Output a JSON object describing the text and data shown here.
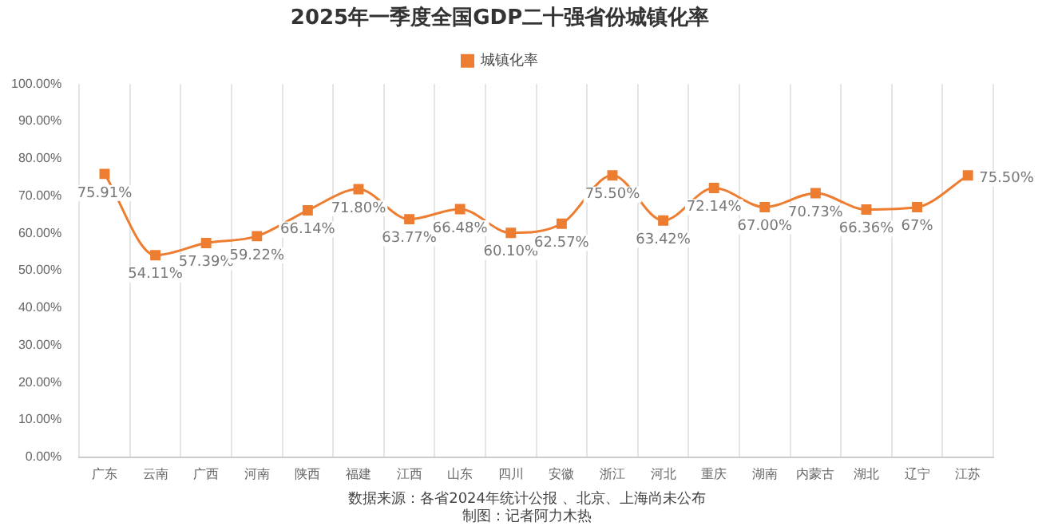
{
  "chart_data": {
    "type": "line",
    "title": "2025年一季度全国GDP二十强省份城镇化率",
    "categories": [
      "广东",
      "云南",
      "广西",
      "河南",
      "陕西",
      "福建",
      "江西",
      "山东",
      "四川",
      "安徽",
      "浙江",
      "河北",
      "重庆",
      "湖南",
      "内蒙古",
      "湖北",
      "辽宁",
      "江苏"
    ],
    "series": [
      {
        "name": "城镇化率",
        "color": "#ed7d31",
        "values": [
          75.91,
          54.11,
          57.39,
          59.22,
          66.14,
          71.8,
          63.77,
          66.48,
          60.1,
          62.57,
          75.5,
          63.42,
          72.14,
          67.0,
          70.73,
          66.36,
          67,
          75.5
        ],
        "value_labels": [
          "75.91%",
          "54.11%",
          "57.39%",
          "59.22%",
          "66.14%",
          "71.80%",
          "63.77%",
          "66.48%",
          "60.10%",
          "62.57%",
          "75.50%",
          "63.42%",
          "72.14%",
          "67.00%",
          "70.73%",
          "66.36%",
          "67%",
          "75.50%"
        ]
      }
    ],
    "ylim": [
      0,
      100
    ],
    "yticks": [
      {
        "value": 0,
        "label": "0.00%"
      },
      {
        "value": 10,
        "label": "10.00%"
      },
      {
        "value": 20,
        "label": "20.00%"
      },
      {
        "value": 30,
        "label": "30.00%"
      },
      {
        "value": 40,
        "label": "40.00%"
      },
      {
        "value": 50,
        "label": "50.00%"
      },
      {
        "value": 60,
        "label": "60.00%"
      },
      {
        "value": 70,
        "label": "70.00%"
      },
      {
        "value": 80,
        "label": "80.00%"
      },
      {
        "value": 90,
        "label": "90.00%"
      },
      {
        "value": 100,
        "label": "100.00%"
      }
    ],
    "grid": "x",
    "legend": "top",
    "marker": "square",
    "line_style": "solid",
    "annotations": [
      "数据来源：各省2024年统计公报 、北京、上海尚未公布",
      "制图：记者阿力木热"
    ]
  }
}
